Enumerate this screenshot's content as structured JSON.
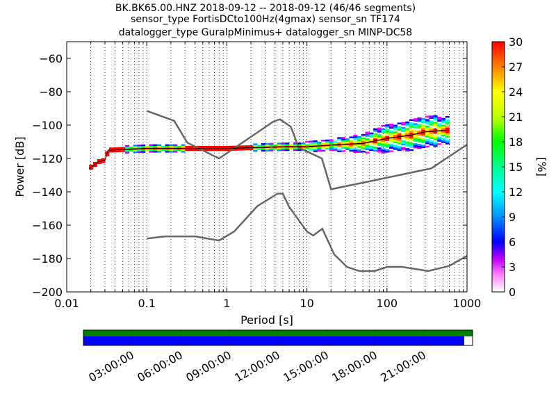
{
  "title_lines": [
    "BK.BK65.00.HNZ   2018-09-12 -- 2018-09-12  (46/46 segments)",
    "sensor_type FortisDCto100Hz(4gmax) sensor_sn TF174",
    "datalogger_type GuralpMinimus+ datalogger_sn MINP-DC58"
  ],
  "chart_data": {
    "type": "heatmap",
    "x_label": "Period [s]",
    "y_label": "Power [dB]",
    "x_scale": "log",
    "x_range": [
      0.01,
      1000
    ],
    "y_range": [
      -200,
      -50
    ],
    "x_ticks": [
      {
        "v": 0.01,
        "label": "0.01"
      },
      {
        "v": 0.1,
        "label": "0.1"
      },
      {
        "v": 1,
        "label": "1"
      },
      {
        "v": 10,
        "label": "10"
      },
      {
        "v": 100,
        "label": "100"
      },
      {
        "v": 1000,
        "label": "1000"
      }
    ],
    "y_ticks": [
      {
        "v": -60,
        "label": "−60"
      },
      {
        "v": -80,
        "label": "−80"
      },
      {
        "v": -100,
        "label": "−100"
      },
      {
        "v": -120,
        "label": "−120"
      },
      {
        "v": -140,
        "label": "−140"
      },
      {
        "v": -160,
        "label": "−160"
      },
      {
        "v": -180,
        "label": "−180"
      },
      {
        "v": -200,
        "label": "−200"
      }
    ],
    "grid": "dotted-vertical",
    "colorbar": {
      "label": "[%]",
      "range": [
        0,
        30
      ],
      "ticks": [
        "0",
        "3",
        "6",
        "9",
        "12",
        "15",
        "18",
        "21",
        "24",
        "27",
        "30"
      ]
    },
    "noise_model_high": [
      [
        0.1,
        -91.5
      ],
      [
        0.22,
        -97.4
      ],
      [
        0.32,
        -110.5
      ],
      [
        0.8,
        -120
      ],
      [
        3.8,
        -97.9
      ],
      [
        4.6,
        -96.5
      ],
      [
        6.3,
        -101
      ],
      [
        7.9,
        -113.5
      ],
      [
        15.4,
        -120
      ],
      [
        20,
        -138.5
      ],
      [
        354.8,
        -126
      ],
      [
        10000,
        -80
      ]
    ],
    "noise_model_low": [
      [
        0.1,
        -168
      ],
      [
        0.17,
        -166.7
      ],
      [
        0.4,
        -166.7
      ],
      [
        0.8,
        -169.2
      ],
      [
        1.24,
        -163.7
      ],
      [
        2.4,
        -148.6
      ],
      [
        4.3,
        -141.1
      ],
      [
        5,
        -141.1
      ],
      [
        6,
        -149
      ],
      [
        10,
        -163.8
      ],
      [
        12,
        -166.2
      ],
      [
        15.6,
        -162.1
      ],
      [
        21.9,
        -177.5
      ],
      [
        31.6,
        -185
      ],
      [
        45,
        -187.5
      ],
      [
        70,
        -187.5
      ],
      [
        101,
        -185
      ],
      [
        154,
        -185
      ],
      [
        328,
        -187.5
      ],
      [
        600,
        -184.4
      ],
      [
        10000,
        -151.5
      ]
    ],
    "psd_median": [
      [
        0.019,
        -126
      ],
      [
        0.022,
        -124
      ],
      [
        0.025,
        -122
      ],
      [
        0.03,
        -121
      ],
      [
        0.033,
        -115
      ],
      [
        0.1,
        -114
      ],
      [
        1,
        -114
      ],
      [
        5,
        -113
      ],
      [
        10,
        -113
      ],
      [
        20,
        -112
      ],
      [
        50,
        -111
      ],
      [
        100,
        -108
      ],
      [
        200,
        -106
      ],
      [
        300,
        -104
      ],
      [
        600,
        -103
      ]
    ],
    "psd_spread_db": [
      [
        0.019,
        1
      ],
      [
        0.03,
        1
      ],
      [
        0.1,
        2
      ],
      [
        1,
        1
      ],
      [
        5,
        2
      ],
      [
        20,
        3
      ],
      [
        50,
        5
      ],
      [
        100,
        8
      ],
      [
        300,
        9
      ],
      [
        600,
        8
      ]
    ]
  },
  "timeline": {
    "ticks": [
      "03:00:00",
      "06:00:00",
      "09:00:00",
      "12:00:00",
      "15:00:00",
      "18:00:00",
      "21:00:00"
    ],
    "coverage_color": "#0000ff",
    "data_color": "#008000",
    "coverage_fraction": 0.9785
  },
  "colors": {
    "noise_model": "#666666",
    "median": "#000000"
  }
}
